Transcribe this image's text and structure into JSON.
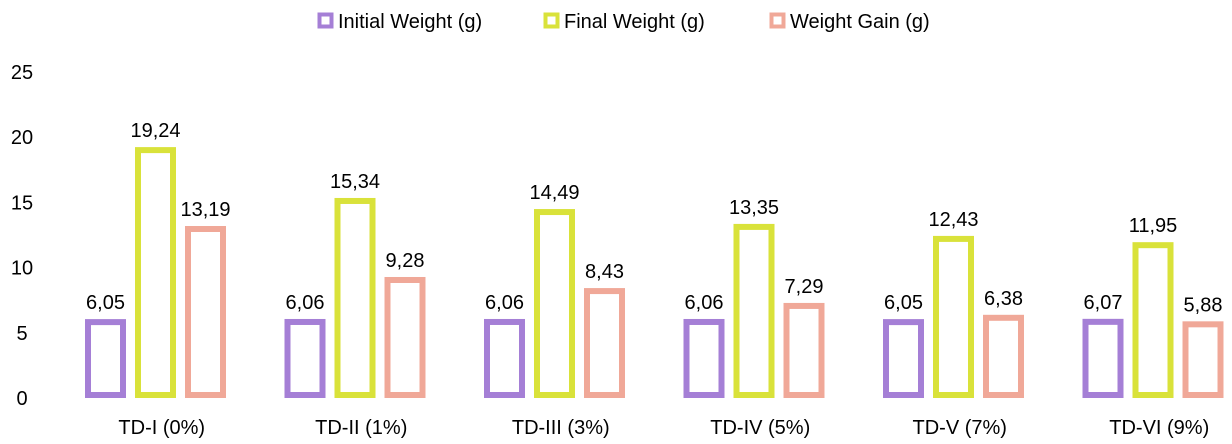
{
  "chart_data": {
    "type": "bar",
    "categories": [
      "TD-I (0%)",
      "TD-II (1%)",
      "TD-III (3%)",
      "TD-IV (5%)",
      "TD-V (7%)",
      "TD-VI (9%)"
    ],
    "series": [
      {
        "name": "Initial Weight (g)",
        "values": [
          6.05,
          6.06,
          6.06,
          6.06,
          6.05,
          6.07
        ],
        "labels": [
          "6,05",
          "6,06",
          "6,06",
          "6,06",
          "6,05",
          "6,07"
        ],
        "color": "#A57FD6"
      },
      {
        "name": "Final Weight (g)",
        "values": [
          19.24,
          15.34,
          14.49,
          13.35,
          12.43,
          11.95
        ],
        "labels": [
          "19,24",
          "15,34",
          "14,49",
          "13,35",
          "12,43",
          "11,95"
        ],
        "color": "#D9E23A"
      },
      {
        "name": "Weight Gain (g)",
        "values": [
          13.19,
          9.28,
          8.43,
          7.29,
          6.38,
          5.88
        ],
        "labels": [
          "13,19",
          "9,28",
          "8,43",
          "7,29",
          "6,38",
          "5,88"
        ],
        "color": "#F0A898"
      }
    ],
    "ylim": [
      0,
      25
    ],
    "yticks": [
      "0",
      "5",
      "10",
      "15",
      "20",
      "25"
    ],
    "grid": false,
    "legend": "top-center"
  }
}
